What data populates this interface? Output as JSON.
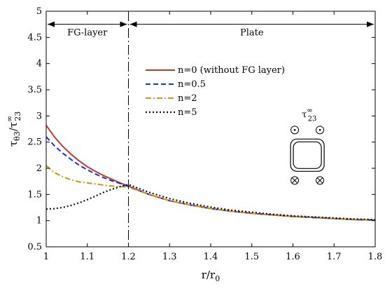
{
  "chart_data": {
    "type": "line",
    "title": "",
    "xlabel": "r/r",
    "xlabel_sub": "0",
    "ylabel": "τ",
    "ylabel_sub": "θ3",
    "ylabel_sep": "/τ",
    "ylabel_sup2": "∞",
    "ylabel_sub2": "23",
    "xlim": [
      1,
      1.8
    ],
    "ylim": [
      0.5,
      5
    ],
    "xticks": [
      1,
      1.1,
      1.2,
      1.3,
      1.4,
      1.5,
      1.6,
      1.7,
      1.8
    ],
    "yticks": [
      0.5,
      1,
      1.5,
      2,
      2.5,
      3,
      3.5,
      4,
      4.5,
      5
    ],
    "grid": false,
    "legend_position": "top-center",
    "boundary_x": 1.2,
    "regions": [
      {
        "label": "FG-layer",
        "from": 1.0,
        "to": 1.2,
        "y": 4.75
      },
      {
        "label": "Plate",
        "from": 1.2,
        "to": 1.8,
        "y": 4.75
      }
    ],
    "inset": {
      "label": "τ",
      "label_sup": "∞",
      "label_sub": "23",
      "x": 1.635,
      "y": 2.25
    },
    "series": [
      {
        "name": "n=0 (without FG layer)",
        "color": "#c0392b",
        "dash": "solid",
        "x": [
          1.0,
          1.02,
          1.04,
          1.06,
          1.08,
          1.1,
          1.12,
          1.14,
          1.16,
          1.18,
          1.2,
          1.25,
          1.3,
          1.35,
          1.4,
          1.45,
          1.5,
          1.55,
          1.6,
          1.65,
          1.7,
          1.75,
          1.8
        ],
        "y": [
          2.82,
          2.6,
          2.42,
          2.27,
          2.14,
          2.03,
          1.94,
          1.86,
          1.79,
          1.72,
          1.66,
          1.5,
          1.38,
          1.3,
          1.23,
          1.18,
          1.14,
          1.11,
          1.08,
          1.06,
          1.04,
          1.02,
          1.01
        ]
      },
      {
        "name": "n=0.5",
        "color": "#1f2fd0",
        "dash": "dashed",
        "x": [
          1.0,
          1.02,
          1.04,
          1.06,
          1.08,
          1.1,
          1.12,
          1.14,
          1.16,
          1.18,
          1.2,
          1.25,
          1.3,
          1.35,
          1.4,
          1.45,
          1.5,
          1.55,
          1.6,
          1.65,
          1.7,
          1.75,
          1.8
        ],
        "y": [
          2.6,
          2.43,
          2.29,
          2.17,
          2.06,
          1.97,
          1.89,
          1.82,
          1.76,
          1.71,
          1.65,
          1.5,
          1.38,
          1.3,
          1.23,
          1.18,
          1.14,
          1.11,
          1.08,
          1.06,
          1.04,
          1.02,
          1.01
        ]
      },
      {
        "name": "n=2",
        "color": "#c89a10",
        "dash": "dashdot",
        "x": [
          1.0,
          1.02,
          1.04,
          1.06,
          1.08,
          1.1,
          1.12,
          1.14,
          1.16,
          1.18,
          1.2,
          1.25,
          1.3,
          1.35,
          1.4,
          1.45,
          1.5,
          1.55,
          1.6,
          1.65,
          1.7,
          1.75,
          1.8
        ],
        "y": [
          2.05,
          1.92,
          1.84,
          1.78,
          1.74,
          1.72,
          1.7,
          1.68,
          1.66,
          1.65,
          1.64,
          1.5,
          1.38,
          1.3,
          1.23,
          1.18,
          1.14,
          1.11,
          1.08,
          1.06,
          1.04,
          1.02,
          1.01
        ]
      },
      {
        "name": "n=5",
        "color": "#111111",
        "dash": "dotted",
        "x": [
          1.0,
          1.02,
          1.04,
          1.06,
          1.08,
          1.1,
          1.12,
          1.14,
          1.16,
          1.18,
          1.2,
          1.25,
          1.3,
          1.35,
          1.4,
          1.45,
          1.5,
          1.55,
          1.6,
          1.65,
          1.7,
          1.75,
          1.8
        ],
        "y": [
          1.22,
          1.23,
          1.25,
          1.29,
          1.34,
          1.4,
          1.47,
          1.54,
          1.6,
          1.65,
          1.69,
          1.54,
          1.42,
          1.33,
          1.26,
          1.2,
          1.16,
          1.12,
          1.09,
          1.07,
          1.05,
          1.03,
          1.02
        ]
      }
    ]
  }
}
